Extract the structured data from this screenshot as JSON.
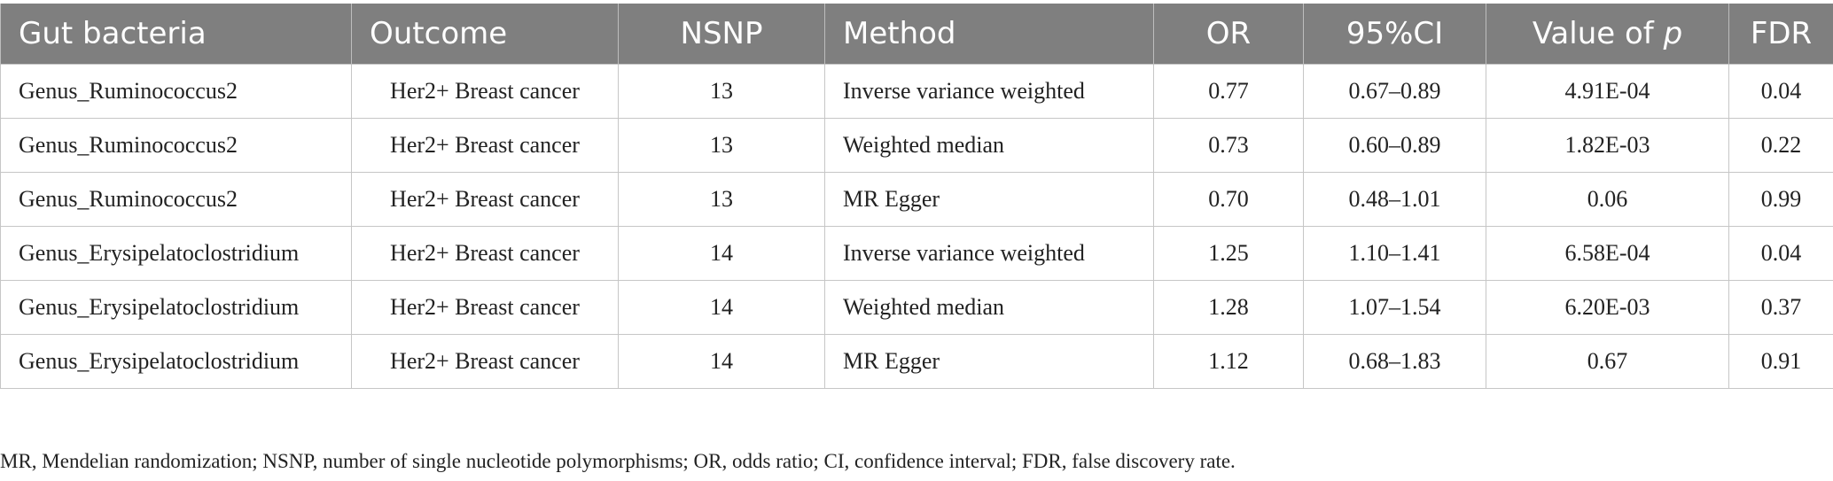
{
  "table": {
    "headers": [
      {
        "label": "Gut bacteria",
        "suffix": ""
      },
      {
        "label": "Outcome",
        "suffix": ""
      },
      {
        "label": "NSNP",
        "suffix": ""
      },
      {
        "label": "Method",
        "suffix": ""
      },
      {
        "label": "OR",
        "suffix": ""
      },
      {
        "label": "95%CI",
        "suffix": ""
      },
      {
        "label": "Value of ",
        "suffix": "p"
      },
      {
        "label": "FDR",
        "suffix": ""
      }
    ],
    "rows": [
      [
        "Genus_Ruminococcus2",
        "Her2+ Breast cancer",
        "13",
        "Inverse variance weighted",
        "0.77",
        "0.67–0.89",
        "4.91E-04",
        "0.04"
      ],
      [
        "Genus_Ruminococcus2",
        "Her2+ Breast cancer",
        "13",
        "Weighted median",
        "0.73",
        "0.60–0.89",
        "1.82E-03",
        "0.22"
      ],
      [
        "Genus_Ruminococcus2",
        "Her2+ Breast cancer",
        "13",
        "MR Egger",
        "0.70",
        "0.48–1.01",
        "0.06",
        "0.99"
      ],
      [
        "Genus_Erysipelatoclostridium",
        "Her2+ Breast cancer",
        "14",
        "Inverse variance weighted",
        "1.25",
        "1.10–1.41",
        "6.58E-04",
        "0.04"
      ],
      [
        "Genus_Erysipelatoclostridium",
        "Her2+ Breast cancer",
        "14",
        "Weighted median",
        "1.28",
        "1.07–1.54",
        "6.20E-03",
        "0.37"
      ],
      [
        "Genus_Erysipelatoclostridium",
        "Her2+ Breast cancer",
        "14",
        "MR Egger",
        "1.12",
        "0.68–1.83",
        "0.67",
        "0.91"
      ]
    ]
  },
  "footnote": "MR, Mendelian randomization; NSNP, number of single nucleotide polymorphisms; OR, odds ratio; CI, confidence interval; FDR, false discovery rate.",
  "colors": {
    "header_bg": "#7f7f7f",
    "header_text": "#ffffff",
    "border": "#c6c6c6"
  }
}
